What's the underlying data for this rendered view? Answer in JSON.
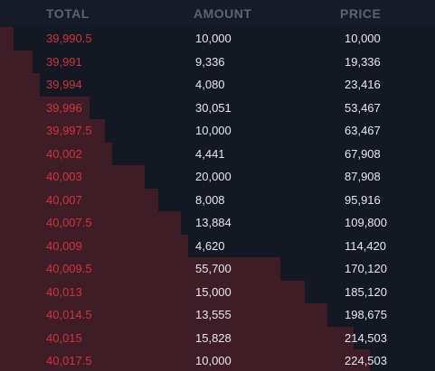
{
  "header": {
    "total": "TOTAL",
    "amount": "AMOUNT",
    "price": "PRICE"
  },
  "colors": {
    "background": "#141823",
    "depth_fill": "#3f1d27",
    "total_text": "#d0343f",
    "value_text": "#e6e8ee",
    "header_text": "#5e6372"
  },
  "rows": [
    {
      "total": "39,990.5",
      "amount": "10,000",
      "price": "10,000",
      "depth": 0.032
    },
    {
      "total": "39,991",
      "amount": "9,336",
      "price": "19,336",
      "depth": 0.075
    },
    {
      "total": "39,994",
      "amount": "4,080",
      "price": "23,416",
      "depth": 0.091
    },
    {
      "total": "39,996",
      "amount": "30,051",
      "price": "53,467",
      "depth": 0.205
    },
    {
      "total": "39,997.5",
      "amount": "10,000",
      "price": "63,467",
      "depth": 0.241
    },
    {
      "total": "40,002",
      "amount": "4,441",
      "price": "67,908",
      "depth": 0.258
    },
    {
      "total": "40,003",
      "amount": "20,000",
      "price": "87,908",
      "depth": 0.333
    },
    {
      "total": "40,007",
      "amount": "8,008",
      "price": "95,916",
      "depth": 0.363
    },
    {
      "total": "40,007.5",
      "amount": "13,884",
      "price": "109,800",
      "depth": 0.415
    },
    {
      "total": "40,009",
      "amount": "4,620",
      "price": "114,420",
      "depth": 0.433
    },
    {
      "total": "40,009.5",
      "amount": "55,700",
      "price": "170,120",
      "depth": 0.644
    },
    {
      "total": "40,013",
      "amount": "15,000",
      "price": "185,120",
      "depth": 0.701
    },
    {
      "total": "40,014.5",
      "amount": "13,555",
      "price": "198,675",
      "depth": 0.752
    },
    {
      "total": "40,015",
      "amount": "15,828",
      "price": "214,503",
      "depth": 0.812
    },
    {
      "total": "40,017.5",
      "amount": "10,000",
      "price": "224,503",
      "depth": 0.85
    }
  ]
}
